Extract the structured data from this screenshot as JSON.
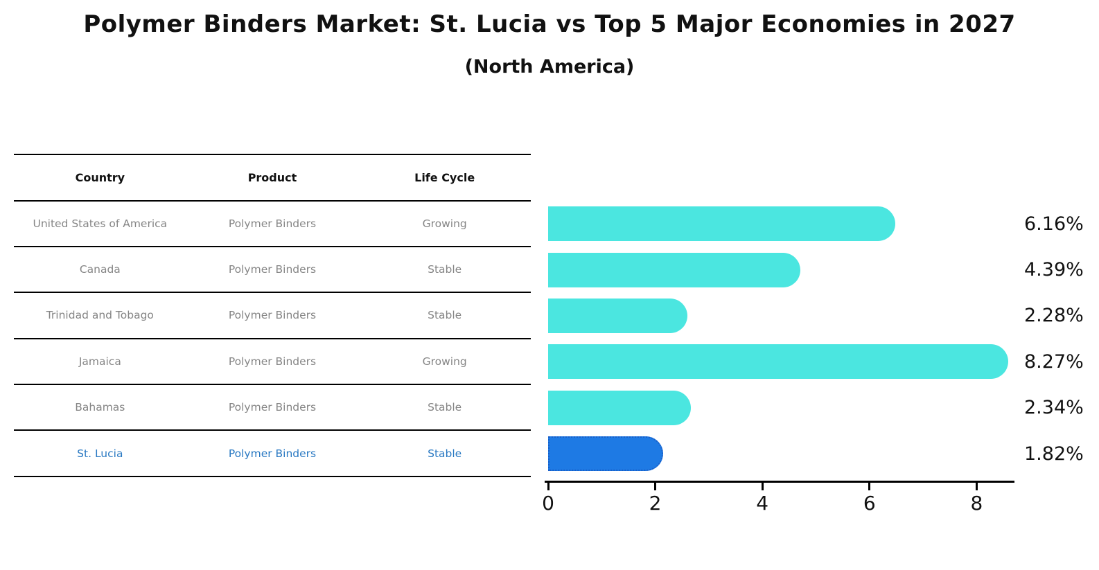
{
  "header": {
    "title": "Polymer Binders Market: St. Lucia vs Top 5 Major Economies in 2027",
    "subtitle": "(North America)"
  },
  "table": {
    "columns": [
      "Country",
      "Product",
      "Life Cycle"
    ],
    "rows": [
      {
        "country": "United States of America",
        "product": "Polymer Binders",
        "life_cycle": "Growing"
      },
      {
        "country": "Canada",
        "product": "Polymer Binders",
        "life_cycle": "Stable"
      },
      {
        "country": "Trinidad and Tobago",
        "product": "Polymer Binders",
        "life_cycle": "Stable"
      },
      {
        "country": "Jamaica",
        "product": "Polymer Binders",
        "life_cycle": "Growing"
      },
      {
        "country": "Bahamas",
        "product": "Polymer Binders",
        "life_cycle": "Stable"
      },
      {
        "country": "St. Lucia",
        "product": "Polymer Binders",
        "life_cycle": "Stable"
      }
    ],
    "highlight_row_index": 5
  },
  "chart_data": {
    "type": "bar",
    "orientation": "horizontal",
    "categories": [
      "United States of America",
      "Canada",
      "Trinidad and Tobago",
      "Jamaica",
      "Bahamas",
      "St. Lucia"
    ],
    "values": [
      6.16,
      4.39,
      2.28,
      8.27,
      2.34,
      1.82
    ],
    "value_labels": [
      "6.16%",
      "4.39%",
      "2.28%",
      "8.27%",
      "2.34%",
      "1.82%"
    ],
    "x_ticks": [
      0,
      2,
      4,
      6,
      8
    ],
    "xlim": [
      0,
      8.7
    ],
    "grid": false,
    "title": "Polymer Binders Market: St. Lucia vs Top 5 Major Economies in 2027 (North America)",
    "xlabel": "",
    "ylabel": "",
    "bar_color": "#4BE6E0",
    "highlight_color": "#1E7AE4",
    "highlight_border_color": "#1A5FC8",
    "highlight_index": 5,
    "value_label_position": "right"
  },
  "colors": {
    "title_text": "#111111",
    "table_header_text": "#111111",
    "table_row_text": "#858585",
    "highlight_text": "#2878C2",
    "table_line": "#000000",
    "axis": "#000000",
    "background": "#FFFFFF"
  }
}
